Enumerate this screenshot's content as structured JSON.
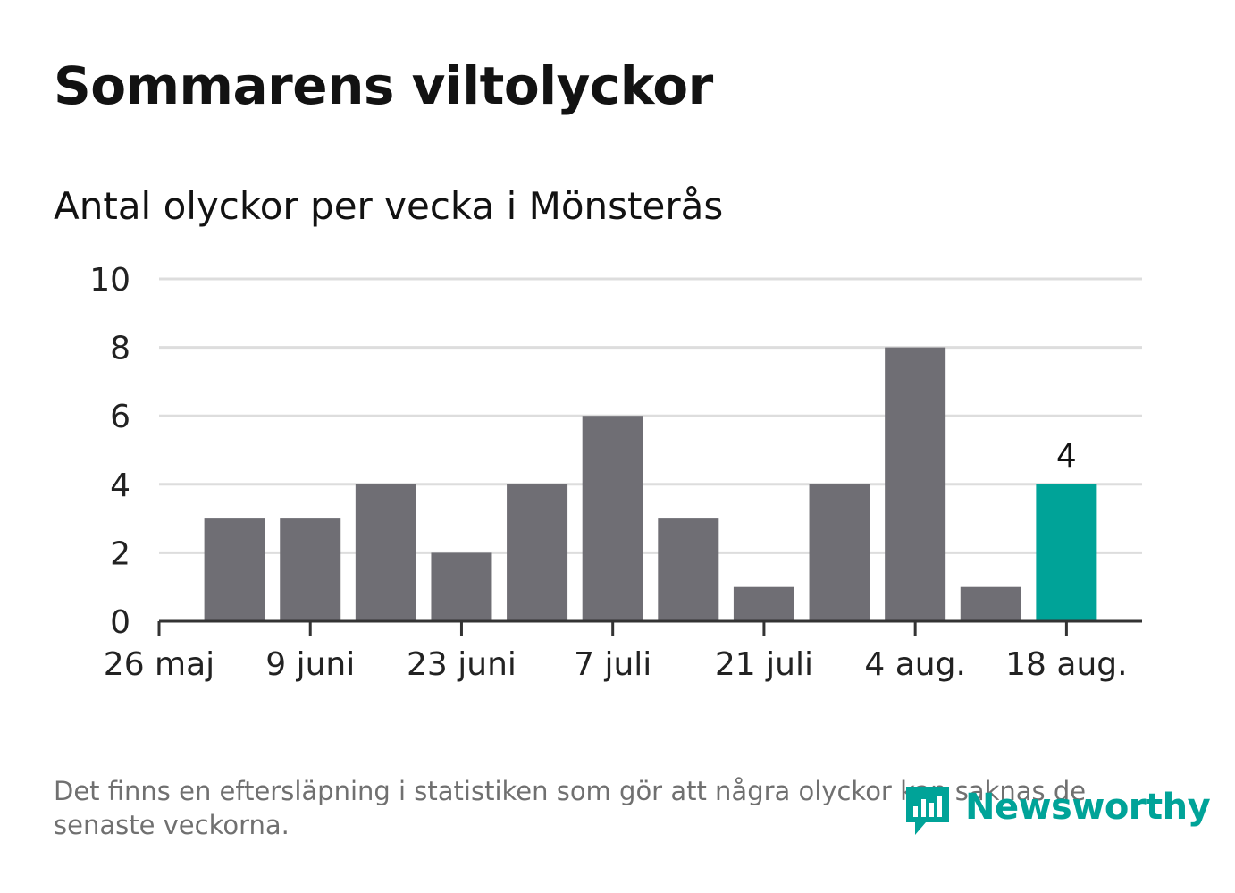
{
  "title": "Sommarens viltolyckor",
  "subtitle": "Antal olyckor per vecka i Mönsterås",
  "footnote": "Det finns en eftersläpning i statistiken som gör att några olyckor kan saknas de senaste veckorna.",
  "logo": {
    "text": "Newsworthy",
    "icon": "bar-chart-speech-bubble-icon"
  },
  "colors": {
    "bar": "#6f6e74",
    "highlight": "#00a398",
    "grid": "#dddddd",
    "axis": "#333333"
  },
  "chart_data": {
    "type": "bar",
    "x_ticks": [
      "26 maj",
      "9 juni",
      "23 juni",
      "7 juli",
      "21 juli",
      "4 aug.",
      "18 aug."
    ],
    "values": [
      3,
      3,
      4,
      2,
      4,
      6,
      3,
      1,
      4,
      8,
      1,
      4
    ],
    "highlight_index": 11,
    "highlight_label": "4",
    "yticks": [
      "0",
      "2",
      "4",
      "6",
      "8",
      "10"
    ],
    "ylim": [
      0,
      10
    ],
    "grid": true,
    "legend": "none"
  }
}
